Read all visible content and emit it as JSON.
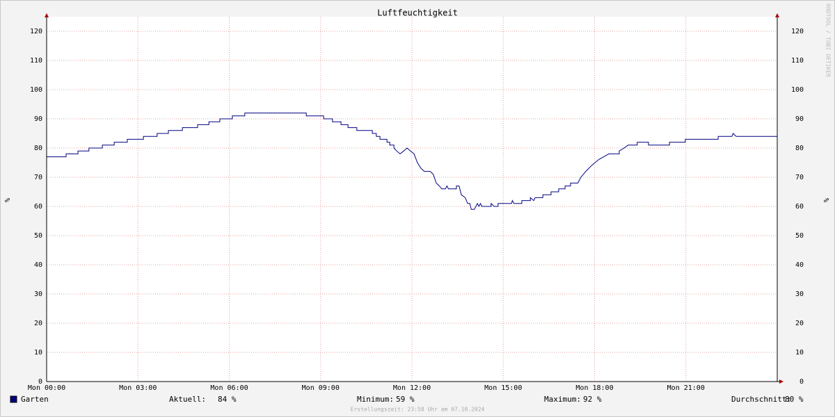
{
  "chart_data": {
    "type": "line",
    "title": "Luftfeuchtigkeit",
    "y_label": "%",
    "watermark": "RRDTOOL / TOBI OETIKER",
    "xlim": [
      0,
      24
    ],
    "xticks": [
      {
        "value": 0,
        "label": "Mon 00:00"
      },
      {
        "value": 3,
        "label": "Mon 03:00"
      },
      {
        "value": 6,
        "label": "Mon 06:00"
      },
      {
        "value": 9,
        "label": "Mon 09:00"
      },
      {
        "value": 12,
        "label": "Mon 12:00"
      },
      {
        "value": 15,
        "label": "Mon 15:00"
      },
      {
        "value": 18,
        "label": "Mon 18:00"
      },
      {
        "value": 21,
        "label": "Mon 21:00"
      }
    ],
    "ylim": [
      0,
      125
    ],
    "yticks": [
      0,
      10,
      20,
      30,
      40,
      50,
      60,
      70,
      80,
      90,
      100,
      110,
      120
    ],
    "grid": true,
    "series": [
      {
        "name": "Garten",
        "color": "#000080",
        "x": [
          0,
          0.64,
          0.64,
          1.03,
          1.03,
          1.39,
          1.39,
          1.83,
          1.83,
          2.22,
          2.22,
          2.65,
          2.65,
          3.18,
          3.18,
          3.63,
          3.63,
          4.0,
          4.0,
          4.46,
          4.46,
          4.96,
          4.96,
          5.33,
          5.33,
          5.69,
          5.69,
          6.1,
          6.1,
          6.51,
          6.51,
          8.53,
          8.53,
          9.1,
          9.1,
          9.39,
          9.39,
          9.67,
          9.67,
          9.9,
          9.9,
          10.19,
          10.19,
          10.7,
          10.7,
          10.83,
          10.83,
          10.95,
          10.95,
          11.18,
          11.18,
          11.27,
          11.27,
          11.41,
          11.41,
          11.5,
          11.61,
          11.73,
          11.84,
          11.95,
          12.07,
          12.18,
          12.3,
          12.41,
          12.6,
          12.7,
          12.8,
          12.9,
          12.98,
          13.1,
          13.15,
          13.2,
          13.46,
          13.46,
          13.55,
          13.62,
          13.75,
          13.83,
          13.9,
          13.95,
          14.05,
          14.15,
          14.2,
          14.25,
          14.3,
          14.6,
          14.6,
          14.7,
          14.83,
          14.83,
          15.27,
          15.3,
          15.35,
          15.61,
          15.61,
          15.89,
          15.89,
          16.0,
          16.05,
          16.3,
          16.3,
          16.57,
          16.57,
          16.82,
          16.82,
          17.03,
          17.03,
          17.21,
          17.21,
          17.45,
          17.55,
          17.71,
          17.9,
          18.13,
          18.3,
          18.47,
          18.81,
          18.81,
          18.97,
          19.1,
          19.4,
          19.4,
          19.77,
          19.77,
          20.46,
          20.46,
          20.98,
          20.98,
          22.06,
          22.06,
          22.51,
          22.55,
          22.65,
          24
        ],
        "values": [
          77,
          77,
          78,
          78,
          79,
          79,
          80,
          80,
          81,
          81,
          82,
          82,
          83,
          83,
          84,
          84,
          85,
          85,
          86,
          86,
          87,
          87,
          88,
          88,
          89,
          89,
          90,
          90,
          91,
          91,
          92,
          92,
          91,
          91,
          90,
          90,
          89,
          89,
          88,
          88,
          87,
          87,
          86,
          86,
          85,
          85,
          84,
          84,
          83,
          83,
          82,
          82,
          81,
          81,
          80,
          79,
          78,
          79,
          80,
          79,
          78,
          75,
          73,
          72,
          72,
          71,
          68,
          67,
          66,
          66,
          67,
          66,
          66,
          67,
          67,
          64,
          63,
          61,
          61,
          59,
          59,
          61,
          60,
          61,
          60,
          60,
          61,
          60,
          60,
          61,
          61,
          62,
          61,
          61,
          62,
          62,
          63,
          62,
          63,
          63,
          64,
          64,
          65,
          65,
          66,
          66,
          67,
          67,
          68,
          68,
          70,
          72,
          74,
          76,
          77,
          78,
          78,
          79,
          80,
          81,
          81,
          82,
          82,
          81,
          81,
          82,
          82,
          83,
          83,
          84,
          84,
          85,
          84,
          84
        ]
      }
    ],
    "stats": [
      {
        "label": "Aktuell:",
        "value": 84,
        "value_label": "84 %"
      },
      {
        "label": "Minimum:",
        "value": 59,
        "value_label": "59 %"
      },
      {
        "label": "Maximum:",
        "value": 92,
        "value_label": "92 %"
      },
      {
        "label": "Durchschnitt:",
        "value": 80,
        "value_label": "80 %"
      }
    ],
    "footer": "Erstellungszeit: 23:58 Uhr am 07.10.2024"
  }
}
